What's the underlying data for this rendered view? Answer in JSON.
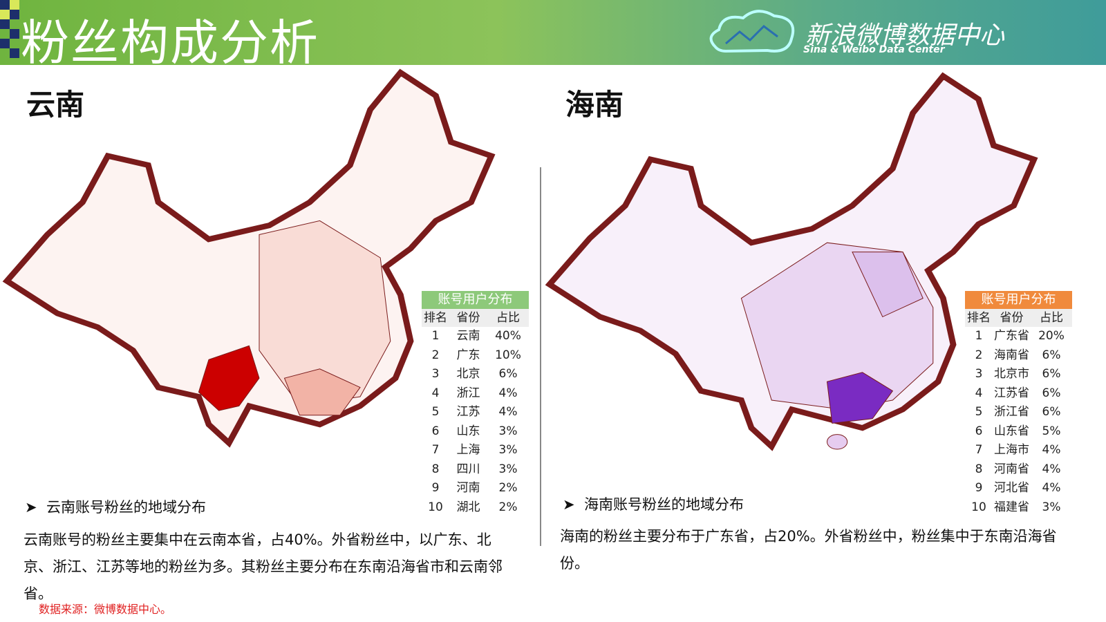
{
  "header": {
    "title": "粉丝构成分析",
    "logo": "新浪微博数据中心",
    "logo_subtitle": "Sina & Weibo Data Center"
  },
  "panels": [
    {
      "region": "云南",
      "table": {
        "title": "账号用户分布",
        "columns": [
          "排名",
          "省份",
          "占比"
        ],
        "rows": [
          [
            1,
            "云南",
            "40%"
          ],
          [
            2,
            "广东",
            "10%"
          ],
          [
            3,
            "北京",
            "6%"
          ],
          [
            4,
            "浙江",
            "4%"
          ],
          [
            5,
            "江苏",
            "4%"
          ],
          [
            6,
            "山东",
            "3%"
          ],
          [
            7,
            "上海",
            "3%"
          ],
          [
            8,
            "四川",
            "3%"
          ],
          [
            9,
            "河南",
            "2%"
          ],
          [
            10,
            "湖北",
            "2%"
          ]
        ]
      },
      "bullet": "云南账号粉丝的地域分布",
      "description": "云南账号的粉丝主要集中在云南本省，占40%。外省粉丝中，以广东、北京、浙江、江苏等地的粉丝为多。其粉丝主要分布在东南沿海省市和云南邻省。"
    },
    {
      "region": "海南",
      "table": {
        "title": "账号用户分布",
        "columns": [
          "排名",
          "省份",
          "占比"
        ],
        "rows": [
          [
            1,
            "广东省",
            "20%"
          ],
          [
            2,
            "海南省",
            "6%"
          ],
          [
            3,
            "北京市",
            "6%"
          ],
          [
            4,
            "江苏省",
            "6%"
          ],
          [
            5,
            "浙江省",
            "6%"
          ],
          [
            6,
            "山东省",
            "5%"
          ],
          [
            7,
            "上海市",
            "4%"
          ],
          [
            8,
            "河南省",
            "4%"
          ],
          [
            9,
            "河北省",
            "4%"
          ],
          [
            10,
            "福建省",
            "3%"
          ]
        ]
      },
      "bullet": "海南账号粉丝的地域分布",
      "description": "海南的粉丝主要分布于广东省，占20%。外省粉丝中，粉丝集中于东南沿海省份。"
    }
  ],
  "source": "数据来源：微博数据中心。"
}
